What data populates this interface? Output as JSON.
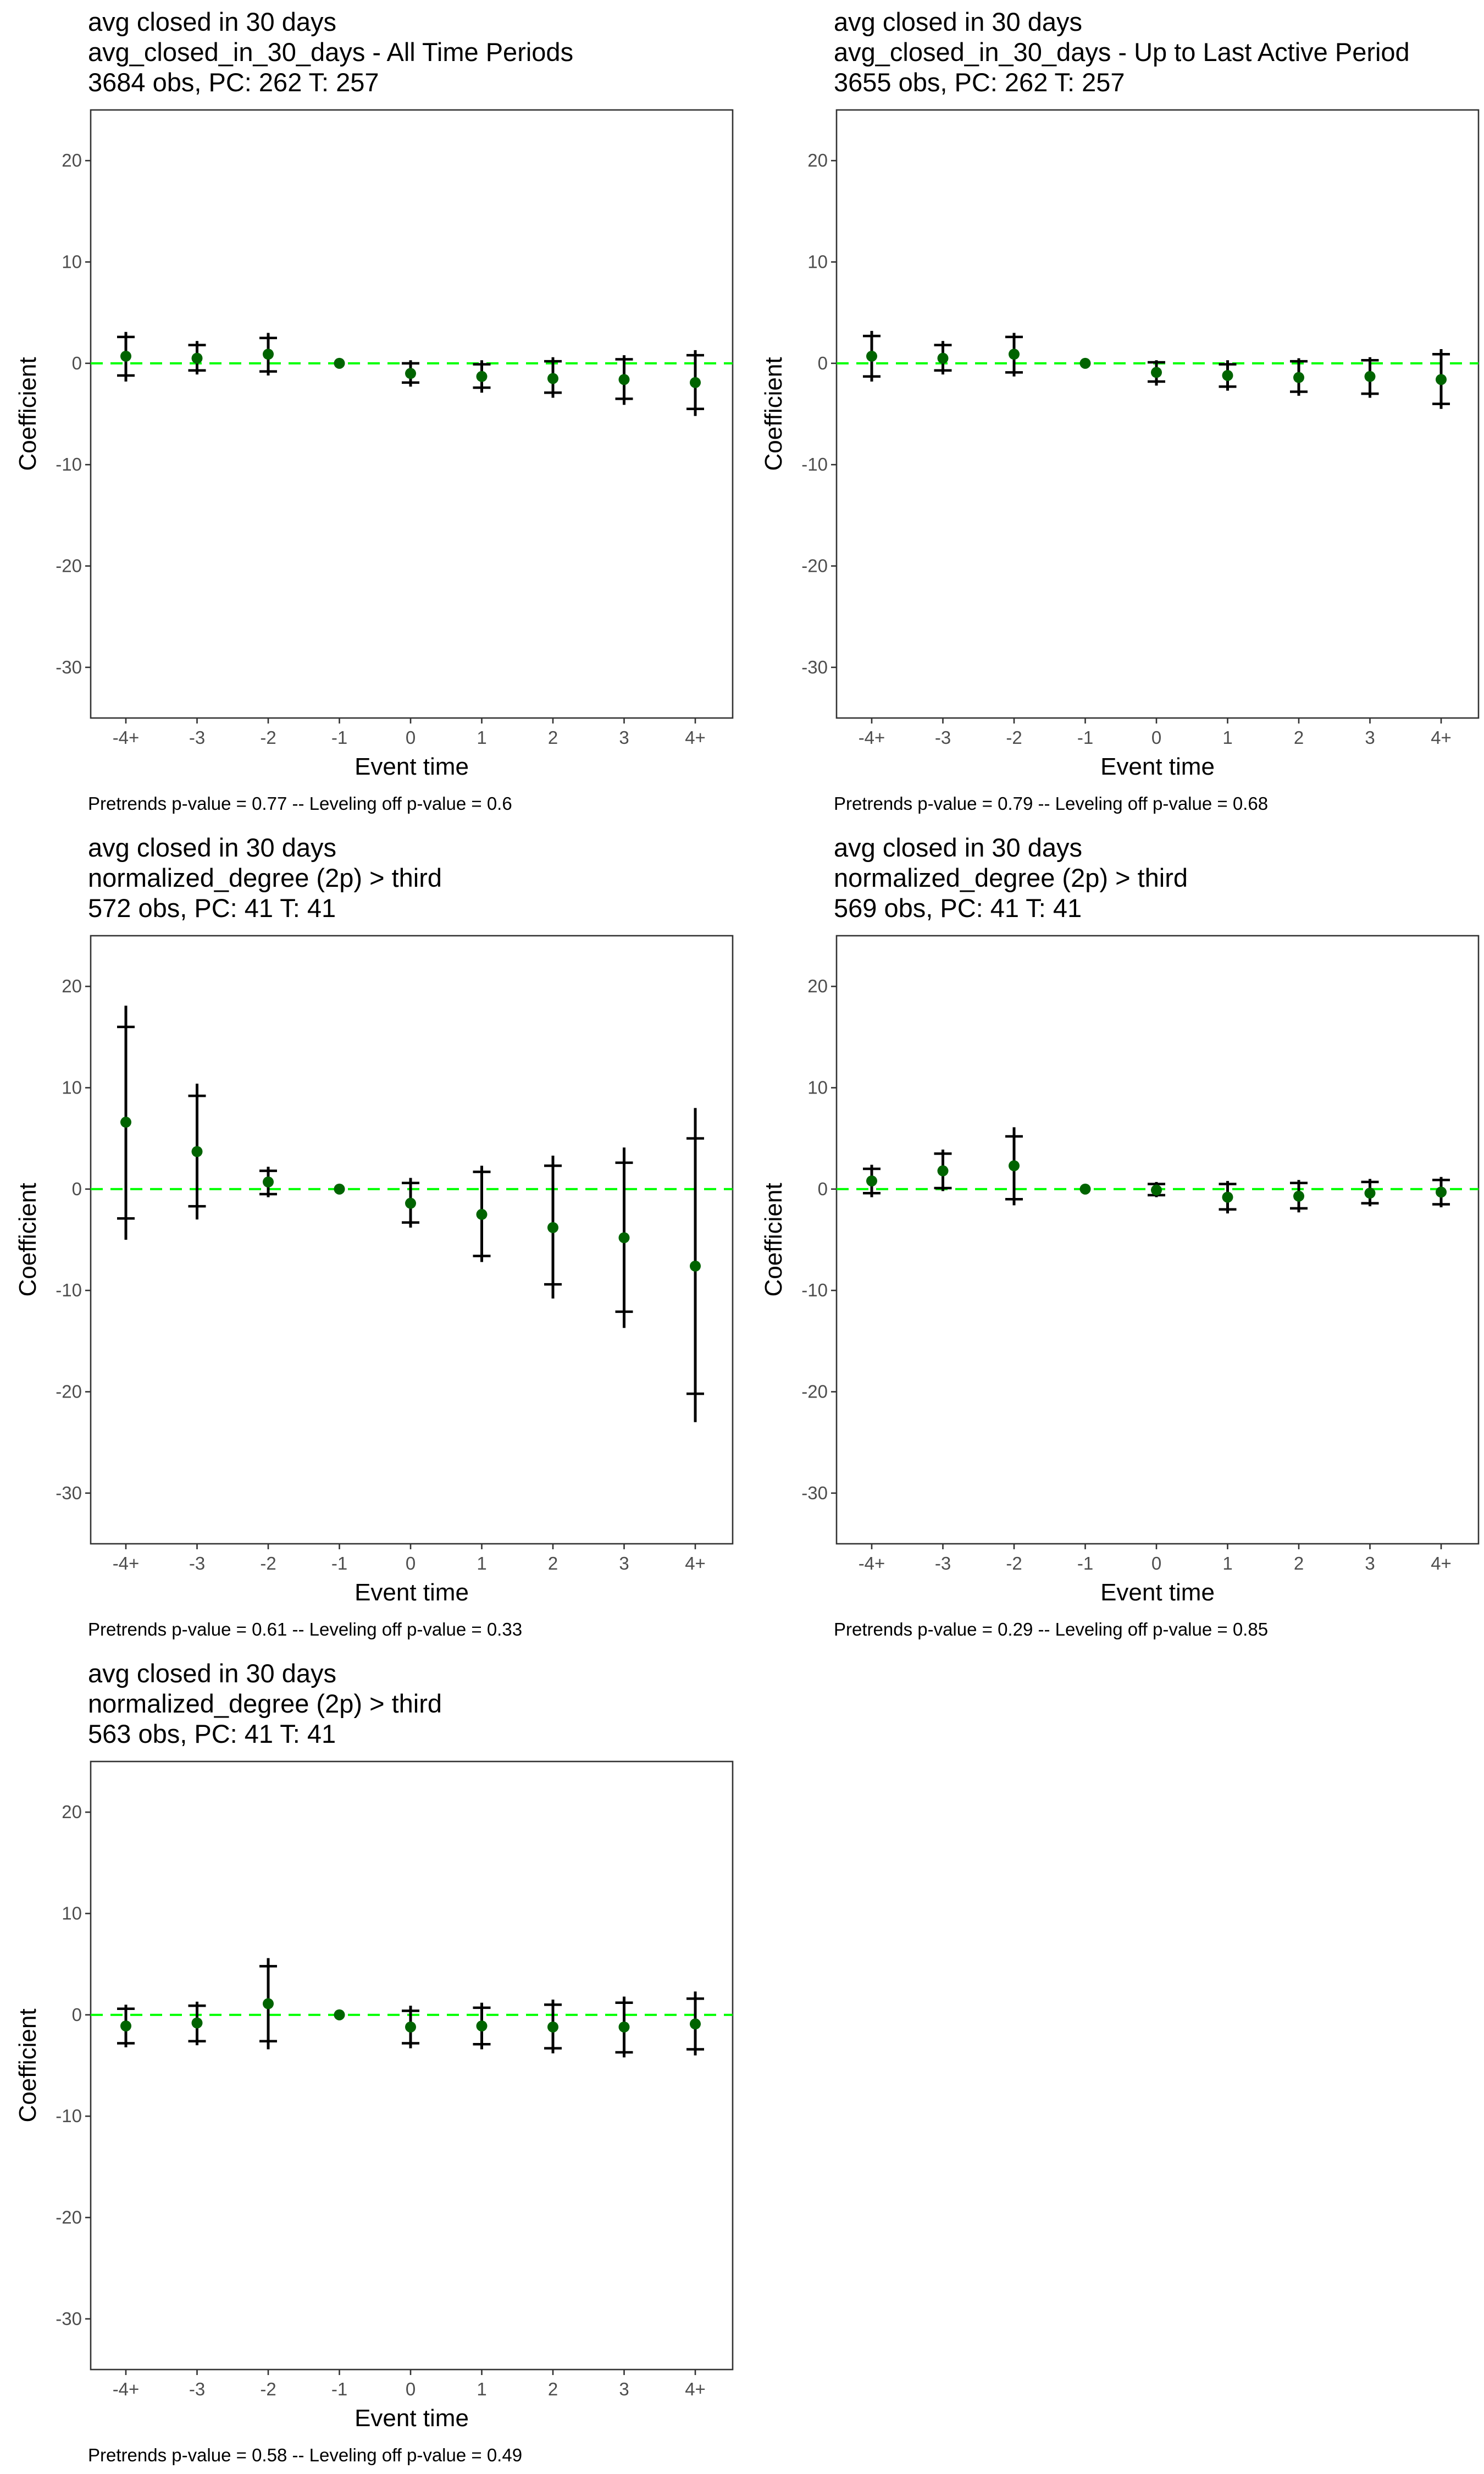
{
  "chart_data": [
    {
      "type": "scatter",
      "title": [
        "avg closed in 30 days",
        "avg_closed_in_30_days - All Time Periods",
        "3684 obs, PC: 262 T: 257"
      ],
      "xlabel": "Event time",
      "ylabel": "Coefficient",
      "categories": [
        "-4+",
        "-3",
        "-2",
        "-1",
        "0",
        "1",
        "2",
        "3",
        "4+"
      ],
      "ylim": [
        -35,
        25
      ],
      "yticks": [
        20,
        10,
        0,
        -10,
        -20,
        -30
      ],
      "reference_line": 0,
      "points": [
        0.7,
        0.5,
        0.9,
        0.0,
        -1.0,
        -1.3,
        -1.5,
        -1.6,
        -1.9
      ],
      "ci_outer": [
        [
          -1.8,
          3.1
        ],
        [
          -1.1,
          2.2
        ],
        [
          -1.2,
          3.0
        ],
        [
          0,
          0
        ],
        [
          -2.3,
          0.3
        ],
        [
          -2.9,
          0.3
        ],
        [
          -3.4,
          0.6
        ],
        [
          -4.1,
          0.8
        ],
        [
          -5.2,
          1.3
        ]
      ],
      "ci_inner": [
        [
          -1.2,
          2.6
        ],
        [
          -0.7,
          1.8
        ],
        [
          -0.8,
          2.5
        ],
        [
          0,
          0
        ],
        [
          -1.9,
          0.0
        ],
        [
          -2.4,
          -0.1
        ],
        [
          -2.9,
          0.2
        ],
        [
          -3.5,
          0.4
        ],
        [
          -4.5,
          0.8
        ]
      ],
      "note": "Pretrends p-value = 0.77 -- Leveling off p-value = 0.6"
    },
    {
      "type": "scatter",
      "title": [
        "avg closed in 30 days",
        "avg_closed_in_30_days - Up to Last Active Period",
        "3655 obs, PC: 262 T: 257"
      ],
      "xlabel": "Event time",
      "ylabel": "Coefficient",
      "categories": [
        "-4+",
        "-3",
        "-2",
        "-1",
        "0",
        "1",
        "2",
        "3",
        "4+"
      ],
      "ylim": [
        -35,
        25
      ],
      "yticks": [
        20,
        10,
        0,
        -10,
        -20,
        -30
      ],
      "reference_line": 0,
      "points": [
        0.7,
        0.5,
        0.9,
        0.0,
        -0.9,
        -1.2,
        -1.4,
        -1.3,
        -1.6
      ],
      "ci_outer": [
        [
          -1.8,
          3.2
        ],
        [
          -1.1,
          2.2
        ],
        [
          -1.3,
          3.0
        ],
        [
          0,
          0
        ],
        [
          -2.2,
          0.3
        ],
        [
          -2.7,
          0.3
        ],
        [
          -3.2,
          0.5
        ],
        [
          -3.4,
          0.6
        ],
        [
          -4.5,
          1.4
        ]
      ],
      "ci_inner": [
        [
          -1.3,
          2.7
        ],
        [
          -0.7,
          1.8
        ],
        [
          -0.9,
          2.6
        ],
        [
          0,
          0
        ],
        [
          -1.8,
          0.1
        ],
        [
          -2.3,
          -0.1
        ],
        [
          -2.8,
          0.2
        ],
        [
          -3.0,
          0.3
        ],
        [
          -4.0,
          0.9
        ]
      ],
      "note": "Pretrends p-value = 0.79 -- Leveling off p-value = 0.68"
    },
    {
      "type": "scatter",
      "title": [
        "avg closed in 30 days",
        "normalized_degree (2p) > third",
        "572 obs, PC: 41 T: 41"
      ],
      "xlabel": "Event time",
      "ylabel": "Coefficient",
      "categories": [
        "-4+",
        "-3",
        "-2",
        "-1",
        "0",
        "1",
        "2",
        "3",
        "4+"
      ],
      "ylim": [
        -35,
        25
      ],
      "yticks": [
        20,
        10,
        0,
        -10,
        -20,
        -30
      ],
      "reference_line": 0,
      "points": [
        6.6,
        3.7,
        0.7,
        0.0,
        -1.4,
        -2.5,
        -3.8,
        -4.8,
        -7.6
      ],
      "ci_outer": [
        [
          -5.0,
          18.1
        ],
        [
          -3.0,
          10.4
        ],
        [
          -0.8,
          2.2
        ],
        [
          0,
          0
        ],
        [
          -3.8,
          1.1
        ],
        [
          -7.2,
          2.3
        ],
        [
          -10.8,
          3.3
        ],
        [
          -13.7,
          4.1
        ],
        [
          -23.0,
          8.0
        ]
      ],
      "ci_inner": [
        [
          -2.9,
          16.0
        ],
        [
          -1.7,
          9.2
        ],
        [
          -0.5,
          1.8
        ],
        [
          0,
          0
        ],
        [
          -3.3,
          0.6
        ],
        [
          -6.6,
          1.7
        ],
        [
          -9.4,
          2.3
        ],
        [
          -12.1,
          2.6
        ],
        [
          -20.2,
          5.0
        ]
      ],
      "note": "Pretrends p-value = 0.61 -- Leveling off p-value = 0.33"
    },
    {
      "type": "scatter",
      "title": [
        "avg closed in 30 days",
        "normalized_degree (2p) > third",
        "569 obs, PC: 41 T: 41"
      ],
      "xlabel": "Event time",
      "ylabel": "Coefficient",
      "categories": [
        "-4+",
        "-3",
        "-2",
        "-1",
        "0",
        "1",
        "2",
        "3",
        "4+"
      ],
      "ylim": [
        -35,
        25
      ],
      "yticks": [
        20,
        10,
        0,
        -10,
        -20,
        -30
      ],
      "reference_line": 0,
      "points": [
        0.8,
        1.8,
        2.3,
        0.0,
        -0.1,
        -0.8,
        -0.7,
        -0.4,
        -0.3
      ],
      "ci_outer": [
        [
          -0.8,
          2.4
        ],
        [
          -0.2,
          3.9
        ],
        [
          -1.6,
          6.1
        ],
        [
          0,
          0
        ],
        [
          -0.8,
          0.7
        ],
        [
          -2.4,
          0.8
        ],
        [
          -2.3,
          0.9
        ],
        [
          -1.7,
          1.0
        ],
        [
          -1.8,
          1.2
        ]
      ],
      "ci_inner": [
        [
          -0.4,
          2.0
        ],
        [
          0.1,
          3.5
        ],
        [
          -1.0,
          5.2
        ],
        [
          0,
          0
        ],
        [
          -0.6,
          0.5
        ],
        [
          -2.0,
          0.5
        ],
        [
          -1.9,
          0.6
        ],
        [
          -1.4,
          0.7
        ],
        [
          -1.5,
          0.9
        ]
      ],
      "note": "Pretrends p-value = 0.29 -- Leveling off p-value = 0.85"
    },
    {
      "type": "scatter",
      "title": [
        "avg closed in 30 days",
        "normalized_degree (2p) > third",
        "563 obs, PC: 41 T: 41"
      ],
      "xlabel": "Event time",
      "ylabel": "Coefficient",
      "categories": [
        "-4+",
        "-3",
        "-2",
        "-1",
        "0",
        "1",
        "2",
        "3",
        "4+"
      ],
      "ylim": [
        -35,
        25
      ],
      "yticks": [
        20,
        10,
        0,
        -10,
        -20,
        -30
      ],
      "reference_line": 0,
      "points": [
        -1.1,
        -0.8,
        1.1,
        0.0,
        -1.2,
        -1.1,
        -1.2,
        -1.2,
        -0.9
      ],
      "ci_outer": [
        [
          -3.2,
          1.0
        ],
        [
          -3.0,
          1.3
        ],
        [
          -3.4,
          5.6
        ],
        [
          0,
          0
        ],
        [
          -3.3,
          0.9
        ],
        [
          -3.4,
          1.2
        ],
        [
          -3.8,
          1.5
        ],
        [
          -4.2,
          1.8
        ],
        [
          -4.0,
          2.3
        ]
      ],
      "ci_inner": [
        [
          -2.8,
          0.6
        ],
        [
          -2.6,
          0.9
        ],
        [
          -2.6,
          4.8
        ],
        [
          0,
          0
        ],
        [
          -2.8,
          0.4
        ],
        [
          -2.9,
          0.7
        ],
        [
          -3.3,
          1.0
        ],
        [
          -3.7,
          1.2
        ],
        [
          -3.4,
          1.6
        ]
      ],
      "note": "Pretrends p-value = 0.58 -- Leveling off p-value = 0.49"
    }
  ]
}
